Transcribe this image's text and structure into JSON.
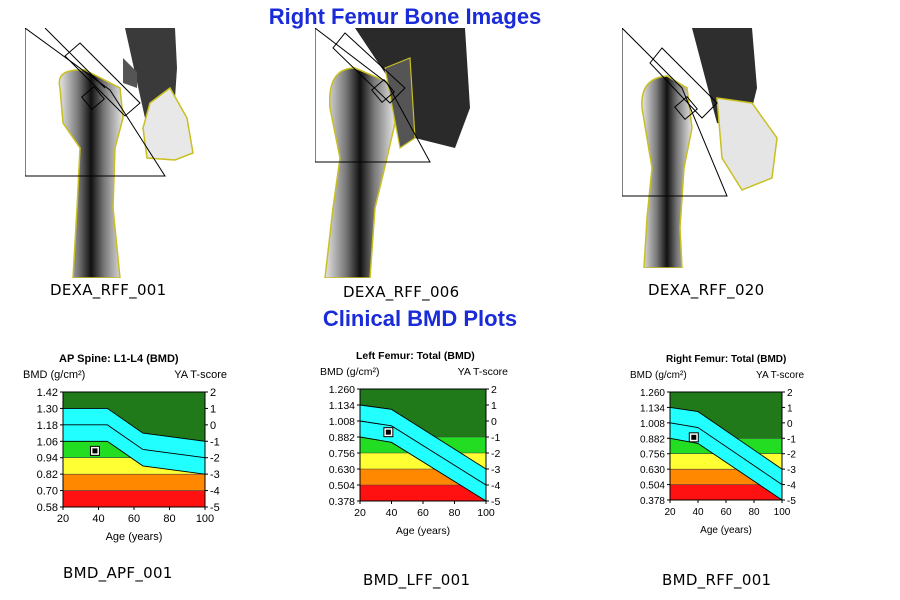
{
  "headings": {
    "images": "Right Femur Bone Images",
    "plots": "Clinical BMD Plots"
  },
  "image_captions": [
    "DEXA_RFF_001",
    "DEXA_RFF_006",
    "DEXA_RFF_020"
  ],
  "plot_captions": [
    "BMD_APF_001",
    "BMD_LFF_001",
    "BMD_RFF_001"
  ],
  "colors": {
    "heading": "#1a2bd9",
    "band_green_dark": "#217a1a",
    "band_green": "#22dd22",
    "band_yellow": "#ffff33",
    "band_orange": "#ff8800",
    "band_red": "#ff1111",
    "reference_band": "#22ffff",
    "bone_outline": "#c8c020"
  },
  "chart_data": [
    {
      "type": "line",
      "title": "AP Spine: L1-L4 (BMD)",
      "ylabel": "BMD (g/cm²)",
      "y2label": "YA T-score",
      "xlabel": "Age (years)",
      "xlim": [
        20,
        100
      ],
      "x_ticks": [
        "20",
        "40",
        "60",
        "80",
        "100"
      ],
      "ylim": [
        0.58,
        1.42
      ],
      "y_ticks": [
        "1.42",
        "1.30",
        "1.18",
        "1.06",
        "0.94",
        "0.82",
        "0.70",
        "0.58"
      ],
      "t_ticks": [
        "2",
        "1",
        "0",
        "-1",
        "-2",
        "-3",
        "-4",
        "-5"
      ],
      "tlim": [
        -5,
        2
      ],
      "zones": [
        {
          "name": "dark green",
          "from_t": -1,
          "to_t": 2
        },
        {
          "name": "green",
          "from_t": -2,
          "to_t": -1
        },
        {
          "name": "yellow",
          "from_t": -3,
          "to_t": -2
        },
        {
          "name": "orange",
          "from_t": -4,
          "to_t": -3
        },
        {
          "name": "red",
          "from_t": -5,
          "to_t": -4
        }
      ],
      "reference": {
        "x": [
          20,
          45,
          65,
          100
        ],
        "upper": [
          1.3,
          1.3,
          1.12,
          1.06
        ],
        "mean": [
          1.18,
          1.18,
          1.0,
          0.94
        ],
        "lower": [
          1.06,
          1.06,
          0.88,
          0.82
        ]
      },
      "point": {
        "x": 38,
        "y": 0.99
      }
    },
    {
      "type": "line",
      "title": "Left Femur: Total (BMD)",
      "ylabel": "BMD (g/cm²)",
      "y2label": "YA T-score",
      "xlabel": "Age (years)",
      "xlim": [
        20,
        100
      ],
      "x_ticks": [
        "20",
        "40",
        "60",
        "80",
        "100"
      ],
      "ylim": [
        0.378,
        1.26
      ],
      "y_ticks": [
        "1.260",
        "1.134",
        "1.008",
        "0.882",
        "0.756",
        "0.630",
        "0.504",
        "0.378"
      ],
      "t_ticks": [
        "2",
        "1",
        "0",
        "-1",
        "-2",
        "-3",
        "-4",
        "-5"
      ],
      "tlim": [
        -5,
        2
      ],
      "zones": [
        {
          "name": "dark green",
          "from_t": -1,
          "to_t": 2
        },
        {
          "name": "green",
          "from_t": -2,
          "to_t": -1
        },
        {
          "name": "yellow",
          "from_t": -3,
          "to_t": -2
        },
        {
          "name": "orange",
          "from_t": -4,
          "to_t": -3
        },
        {
          "name": "red",
          "from_t": -5,
          "to_t": -4
        }
      ],
      "reference": {
        "x": [
          20,
          40,
          100
        ],
        "upper": [
          1.134,
          1.1,
          0.63
        ],
        "mean": [
          1.008,
          0.97,
          0.504
        ],
        "lower": [
          0.882,
          0.84,
          0.378
        ]
      },
      "point": {
        "x": 38,
        "y": 0.92
      }
    },
    {
      "type": "line",
      "title": "Right Femur: Total (BMD)",
      "ylabel": "BMD (g/cm²)",
      "y2label": "YA T-score",
      "xlabel": "Age (years)",
      "xlim": [
        20,
        100
      ],
      "x_ticks": [
        "20",
        "40",
        "60",
        "80",
        "100"
      ],
      "ylim": [
        0.378,
        1.26
      ],
      "y_ticks": [
        "1.260",
        "1.134",
        "1.008",
        "0.882",
        "0.756",
        "0.630",
        "0.504",
        "0.378"
      ],
      "t_ticks": [
        "2",
        "1",
        "0",
        "-1",
        "-2",
        "-3",
        "-4",
        "-5"
      ],
      "tlim": [
        -5,
        2
      ],
      "zones": [
        {
          "name": "dark green",
          "from_t": -1,
          "to_t": 2
        },
        {
          "name": "green",
          "from_t": -2,
          "to_t": -1
        },
        {
          "name": "yellow",
          "from_t": -3,
          "to_t": -2
        },
        {
          "name": "orange",
          "from_t": -4,
          "to_t": -3
        },
        {
          "name": "red",
          "from_t": -5,
          "to_t": -4
        }
      ],
      "reference": {
        "x": [
          20,
          40,
          100
        ],
        "upper": [
          1.134,
          1.1,
          0.63
        ],
        "mean": [
          1.008,
          0.97,
          0.504
        ],
        "lower": [
          0.882,
          0.84,
          0.378
        ]
      },
      "point": {
        "x": 37,
        "y": 0.89
      }
    }
  ]
}
